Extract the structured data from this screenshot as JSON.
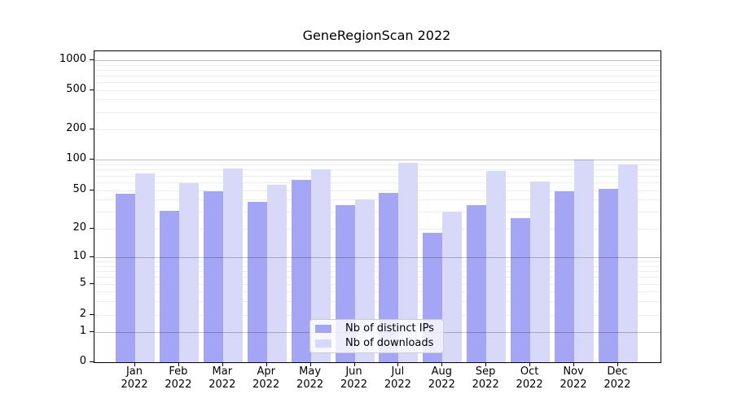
{
  "chart_data": {
    "type": "bar",
    "title": "GeneRegionScan 2022",
    "categories": [
      "Jan 2022",
      "Feb 2022",
      "Mar 2022",
      "Apr 2022",
      "May 2022",
      "Jun 2022",
      "Jul 2022",
      "Aug 2022",
      "Sep 2022",
      "Oct 2022",
      "Nov 2022",
      "Dec 2022"
    ],
    "series": [
      {
        "name": "Nb of distinct IPs",
        "color": "#a5a5f5",
        "values": [
          46,
          31,
          49,
          38,
          63,
          35,
          47,
          18,
          35,
          26,
          49,
          52
        ]
      },
      {
        "name": "Nb of downloads",
        "color": "#d8d8f9",
        "values": [
          73,
          59,
          82,
          57,
          80,
          40,
          93,
          30,
          78,
          61,
          100,
          90
        ]
      }
    ],
    "xlabel": "",
    "ylabel": "",
    "yticks": [
      0,
      1,
      2,
      5,
      10,
      20,
      50,
      100,
      200,
      500,
      1000
    ],
    "yscale": "log-like (0 pinned at baseline)",
    "ylim": [
      0,
      1240
    ],
    "grid": true,
    "legend_position": "lower center"
  }
}
